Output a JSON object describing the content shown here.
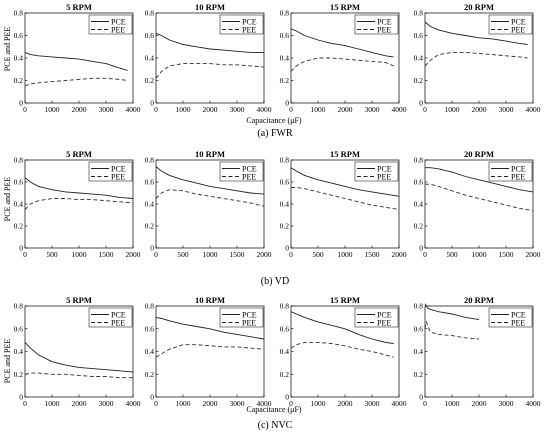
{
  "rows": [
    {
      "caption": "(a) FWR",
      "ylabel": "PCE and PEE",
      "xlabel": "Capacitance (μF)",
      "xlim": [
        0,
        4000
      ],
      "xticks": [
        0,
        1000,
        2000,
        3000,
        4000
      ],
      "ylim": [
        0,
        0.8
      ],
      "yticks": [
        0,
        0.2,
        0.4,
        0.6,
        0.8
      ],
      "panels": [
        {
          "title": "5 RPM"
        },
        {
          "title": "10 RPM"
        },
        {
          "title": "15 RPM"
        },
        {
          "title": "20 RPM"
        }
      ]
    },
    {
      "caption": "(b) VD",
      "ylabel": "PCE and PEE",
      "xlabel": "",
      "xlim": [
        0,
        2000
      ],
      "xticks": [
        0,
        500,
        1000,
        1500,
        2000
      ],
      "ylim": [
        0,
        0.8
      ],
      "yticks": [
        0,
        0.2,
        0.4,
        0.6,
        0.8
      ],
      "panels": [
        {
          "title": "5 RPM"
        },
        {
          "title": "10 RPM"
        },
        {
          "title": "15 RPM"
        },
        {
          "title": "20 RPM"
        }
      ]
    },
    {
      "caption": "(c) NVC",
      "ylabel": "PCE and PEE",
      "xlabel": "Capacitance (μF)",
      "xlim": [
        0,
        4000
      ],
      "xticks": [
        0,
        1000,
        2000,
        3000,
        4000
      ],
      "ylim": [
        0,
        0.8
      ],
      "yticks": [
        0,
        0.2,
        0.4,
        0.6,
        0.8
      ],
      "panels": [
        {
          "title": "5 RPM"
        },
        {
          "title": "10 RPM"
        },
        {
          "title": "15 RPM"
        },
        {
          "title": "20 RPM"
        }
      ]
    }
  ],
  "chart_data": [
    {
      "type": "line",
      "title": "5 RPM",
      "group": "(a) FWR",
      "xlim": [
        0,
        4000
      ],
      "ylim": [
        0,
        0.8
      ],
      "series": [
        {
          "name": "PCE",
          "x": [
            0,
            200,
            500,
            1000,
            1500,
            2000,
            2500,
            3000,
            3500,
            3800
          ],
          "values": [
            0.45,
            0.43,
            0.42,
            0.41,
            0.4,
            0.39,
            0.37,
            0.35,
            0.31,
            0.29
          ]
        },
        {
          "name": "PEE",
          "x": [
            0,
            200,
            500,
            1000,
            1500,
            2000,
            2500,
            3000,
            3500,
            3800
          ],
          "values": [
            0.15,
            0.17,
            0.18,
            0.19,
            0.2,
            0.21,
            0.22,
            0.22,
            0.21,
            0.2
          ]
        }
      ]
    },
    {
      "type": "line",
      "title": "10 RPM",
      "group": "(a) FWR",
      "xlim": [
        0,
        4000
      ],
      "ylim": [
        0,
        0.8
      ],
      "series": [
        {
          "name": "PCE",
          "x": [
            0,
            200,
            500,
            1000,
            1500,
            2000,
            2500,
            3000,
            3500,
            4000
          ],
          "values": [
            0.62,
            0.6,
            0.56,
            0.52,
            0.5,
            0.48,
            0.47,
            0.46,
            0.45,
            0.45
          ]
        },
        {
          "name": "PEE",
          "x": [
            0,
            200,
            500,
            1000,
            1500,
            2000,
            2500,
            3000,
            3500,
            4000
          ],
          "values": [
            0.22,
            0.28,
            0.33,
            0.35,
            0.35,
            0.35,
            0.34,
            0.34,
            0.33,
            0.32
          ]
        }
      ]
    },
    {
      "type": "line",
      "title": "15 RPM",
      "group": "(a) FWR",
      "xlim": [
        0,
        4000
      ],
      "ylim": [
        0,
        0.8
      ],
      "series": [
        {
          "name": "PCE",
          "x": [
            0,
            200,
            500,
            1000,
            1500,
            2000,
            2500,
            3000,
            3500,
            3800
          ],
          "values": [
            0.66,
            0.64,
            0.6,
            0.56,
            0.53,
            0.51,
            0.48,
            0.45,
            0.42,
            0.41
          ]
        },
        {
          "name": "PEE",
          "x": [
            0,
            200,
            500,
            1000,
            1500,
            2000,
            2500,
            3000,
            3500,
            3800
          ],
          "values": [
            0.28,
            0.33,
            0.37,
            0.4,
            0.4,
            0.39,
            0.38,
            0.37,
            0.36,
            0.33
          ]
        }
      ]
    },
    {
      "type": "line",
      "title": "20 RPM",
      "group": "(a) FWR",
      "xlim": [
        0,
        4000
      ],
      "ylim": [
        0,
        0.8
      ],
      "series": [
        {
          "name": "PCE",
          "x": [
            0,
            200,
            500,
            1000,
            1500,
            2000,
            2500,
            3000,
            3500,
            3800
          ],
          "values": [
            0.72,
            0.68,
            0.65,
            0.62,
            0.6,
            0.58,
            0.57,
            0.55,
            0.53,
            0.52
          ]
        },
        {
          "name": "PEE",
          "x": [
            0,
            200,
            500,
            1000,
            1500,
            2000,
            2500,
            3000,
            3500,
            3800
          ],
          "values": [
            0.33,
            0.38,
            0.43,
            0.45,
            0.45,
            0.44,
            0.43,
            0.42,
            0.41,
            0.4
          ]
        }
      ]
    },
    {
      "type": "line",
      "title": "5 RPM",
      "group": "(b) VD",
      "xlim": [
        0,
        2000
      ],
      "ylim": [
        0,
        0.8
      ],
      "series": [
        {
          "name": "PCE",
          "x": [
            0,
            100,
            250,
            500,
            750,
            1000,
            1250,
            1500,
            1750,
            2000
          ],
          "values": [
            0.64,
            0.6,
            0.56,
            0.53,
            0.51,
            0.5,
            0.49,
            0.48,
            0.46,
            0.45
          ]
        },
        {
          "name": "PEE",
          "x": [
            0,
            100,
            250,
            500,
            750,
            1000,
            1250,
            1500,
            1750,
            2000
          ],
          "values": [
            0.35,
            0.4,
            0.43,
            0.45,
            0.45,
            0.44,
            0.44,
            0.43,
            0.42,
            0.41
          ]
        }
      ]
    },
    {
      "type": "line",
      "title": "10 RPM",
      "group": "(b) VD",
      "xlim": [
        0,
        2000
      ],
      "ylim": [
        0,
        0.8
      ],
      "series": [
        {
          "name": "PCE",
          "x": [
            0,
            100,
            250,
            500,
            750,
            1000,
            1250,
            1500,
            1750,
            2000
          ],
          "values": [
            0.74,
            0.7,
            0.66,
            0.62,
            0.59,
            0.56,
            0.54,
            0.52,
            0.5,
            0.49
          ]
        },
        {
          "name": "PEE",
          "x": [
            0,
            100,
            250,
            500,
            750,
            1000,
            1250,
            1500,
            1750,
            2000
          ],
          "values": [
            0.45,
            0.5,
            0.53,
            0.52,
            0.49,
            0.47,
            0.45,
            0.43,
            0.41,
            0.38
          ]
        }
      ]
    },
    {
      "type": "line",
      "title": "15 RPM",
      "group": "(b) VD",
      "xlim": [
        0,
        2000
      ],
      "ylim": [
        0,
        0.8
      ],
      "series": [
        {
          "name": "PCE",
          "x": [
            0,
            100,
            250,
            500,
            750,
            1000,
            1250,
            1500,
            1750,
            2000
          ],
          "values": [
            0.73,
            0.7,
            0.66,
            0.62,
            0.59,
            0.56,
            0.53,
            0.51,
            0.49,
            0.47
          ]
        },
        {
          "name": "PEE",
          "x": [
            0,
            100,
            250,
            500,
            750,
            1000,
            1250,
            1500,
            1750,
            2000
          ],
          "values": [
            0.55,
            0.55,
            0.54,
            0.51,
            0.48,
            0.45,
            0.42,
            0.39,
            0.37,
            0.35
          ]
        }
      ]
    },
    {
      "type": "line",
      "title": "20 RPM",
      "group": "(b) VD",
      "xlim": [
        0,
        2000
      ],
      "ylim": [
        0,
        0.8
      ],
      "series": [
        {
          "name": "PCE",
          "x": [
            0,
            100,
            250,
            500,
            750,
            1000,
            1250,
            1500,
            1750,
            2000
          ],
          "values": [
            0.73,
            0.73,
            0.72,
            0.69,
            0.65,
            0.62,
            0.59,
            0.56,
            0.53,
            0.51
          ]
        },
        {
          "name": "PEE",
          "x": [
            0,
            100,
            250,
            500,
            750,
            1000,
            1250,
            1500,
            1750,
            2000
          ],
          "values": [
            0.58,
            0.58,
            0.56,
            0.52,
            0.48,
            0.45,
            0.42,
            0.39,
            0.36,
            0.34
          ]
        }
      ]
    },
    {
      "type": "line",
      "title": "5 RPM",
      "group": "(c) NVC",
      "xlim": [
        0,
        4000
      ],
      "ylim": [
        0,
        0.8
      ],
      "series": [
        {
          "name": "PCE",
          "x": [
            0,
            200,
            500,
            1000,
            1500,
            2000,
            2500,
            3000,
            3500,
            4000
          ],
          "values": [
            0.48,
            0.43,
            0.37,
            0.31,
            0.28,
            0.26,
            0.25,
            0.24,
            0.23,
            0.22
          ]
        },
        {
          "name": "PEE",
          "x": [
            0,
            200,
            500,
            1000,
            1500,
            2000,
            2500,
            3000,
            3500,
            4000
          ],
          "values": [
            0.2,
            0.21,
            0.21,
            0.2,
            0.2,
            0.19,
            0.18,
            0.18,
            0.17,
            0.17
          ]
        }
      ]
    },
    {
      "type": "line",
      "title": "10 RPM",
      "group": "(c) NVC",
      "xlim": [
        0,
        4000
      ],
      "ylim": [
        0,
        0.8
      ],
      "series": [
        {
          "name": "PCE",
          "x": [
            0,
            200,
            500,
            1000,
            1500,
            2000,
            2500,
            3000,
            3500,
            4000
          ],
          "values": [
            0.7,
            0.69,
            0.67,
            0.64,
            0.62,
            0.6,
            0.57,
            0.55,
            0.53,
            0.51
          ]
        },
        {
          "name": "PEE",
          "x": [
            0,
            200,
            500,
            1000,
            1500,
            2000,
            2500,
            3000,
            3500,
            4000
          ],
          "values": [
            0.35,
            0.38,
            0.42,
            0.46,
            0.46,
            0.45,
            0.44,
            0.44,
            0.43,
            0.42
          ]
        }
      ]
    },
    {
      "type": "line",
      "title": "15 RPM",
      "group": "(c) NVC",
      "xlim": [
        0,
        4000
      ],
      "ylim": [
        0,
        0.8
      ],
      "series": [
        {
          "name": "PCE",
          "x": [
            0,
            200,
            500,
            1000,
            1500,
            2000,
            2500,
            3000,
            3500,
            3800
          ],
          "values": [
            0.75,
            0.73,
            0.7,
            0.66,
            0.63,
            0.6,
            0.55,
            0.51,
            0.48,
            0.47
          ]
        },
        {
          "name": "PEE",
          "x": [
            0,
            200,
            500,
            1000,
            1500,
            2000,
            2500,
            3000,
            3500,
            3800
          ],
          "values": [
            0.43,
            0.46,
            0.48,
            0.48,
            0.47,
            0.45,
            0.42,
            0.4,
            0.37,
            0.35
          ]
        }
      ]
    },
    {
      "type": "line",
      "title": "20 RPM",
      "group": "(c) NVC",
      "xlim": [
        0,
        4000
      ],
      "ylim": [
        0,
        0.8
      ],
      "series": [
        {
          "name": "PCE",
          "x": [
            0,
            50,
            100,
            200,
            500,
            1000,
            1500,
            2000
          ],
          "values": [
            0.82,
            0.8,
            0.78,
            0.77,
            0.75,
            0.73,
            0.7,
            0.68
          ]
        },
        {
          "name": "PEE",
          "x": [
            0,
            50,
            100,
            200,
            500,
            1000,
            1500,
            2000
          ],
          "values": [
            0.6,
            0.66,
            0.63,
            0.57,
            0.55,
            0.54,
            0.52,
            0.51
          ]
        }
      ]
    }
  ]
}
